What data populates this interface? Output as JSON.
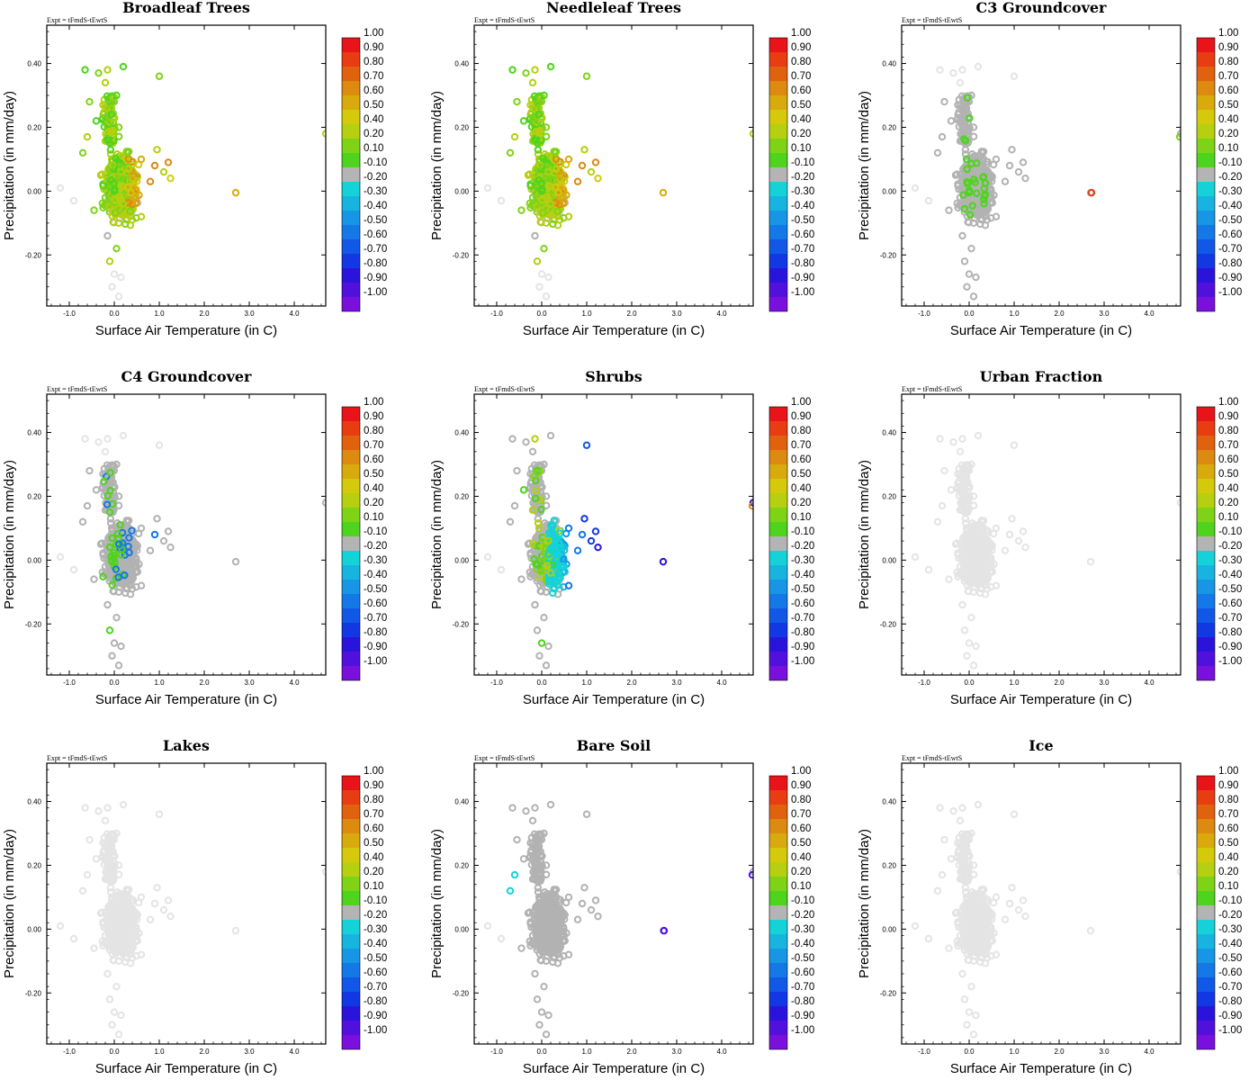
{
  "figure": {
    "experiment_label": "Expt = tFmdS-tEwtS",
    "colorbar_levels": [
      "1.00",
      "0.90",
      "0.80",
      "0.70",
      "0.60",
      "0.50",
      "0.40",
      "0.20",
      "0.10",
      "-0.10",
      "-0.20",
      "-0.30",
      "-0.40",
      "-0.50",
      "-0.60",
      "-0.70",
      "-0.80",
      "-0.90",
      "-1.00"
    ],
    "colorbar_colors": [
      "#e8141a",
      "#e83c12",
      "#e0620f",
      "#dc8a10",
      "#d8aa0d",
      "#d4c90a",
      "#b6cf10",
      "#7ed317",
      "#4ed41c",
      "#b4b4b4",
      "#14d2d8",
      "#18b4e0",
      "#1696e4",
      "#1478e6",
      "#1258e6",
      "#1238e4",
      "#2a14dc",
      "#5210dc",
      "#7a10dc"
    ],
    "colors": {
      "light_point": "#e4e4e4",
      "gray_point": "#b2b2b2",
      "frame": "#000000"
    }
  },
  "chart_data": [
    {
      "type": "scatter",
      "title": "Broadleaf Trees",
      "xlabel": "Surface Air Temperature (in C)",
      "ylabel": "Precipitation (in mm/day)",
      "xlim": [
        -1.5,
        4.7
      ],
      "ylim": [
        -0.36,
        0.52
      ],
      "xticks": [
        "-1.0",
        "0.0",
        "1.0",
        "2.0",
        "3.0",
        "4.0"
      ],
      "yticks": [
        "-0.20",
        "0.00",
        "0.20",
        "0.40"
      ],
      "palette": "green"
    },
    {
      "type": "scatter",
      "title": "Needleleaf Trees",
      "xlabel": "Surface Air Temperature (in C)",
      "ylabel": "Precipitation (in mm/day)",
      "xlim": [
        -1.5,
        4.7
      ],
      "ylim": [
        -0.36,
        0.52
      ],
      "xticks": [
        "-1.0",
        "0.0",
        "1.0",
        "2.0",
        "3.0",
        "4.0"
      ],
      "yticks": [
        "-0.20",
        "0.00",
        "0.20",
        "0.40"
      ],
      "palette": "green"
    },
    {
      "type": "scatter",
      "title": "C3 Groundcover",
      "xlabel": "Surface Air Temperature (in C)",
      "ylabel": "Precipitation (in mm/day)",
      "xlim": [
        -1.5,
        4.7
      ],
      "ylim": [
        -0.36,
        0.52
      ],
      "xticks": [
        "-1.0",
        "0.0",
        "1.0",
        "2.0",
        "3.0",
        "4.0"
      ],
      "yticks": [
        "-0.20",
        "0.00",
        "0.20",
        "0.40"
      ],
      "palette": "c3"
    },
    {
      "type": "scatter",
      "title": "C4 Groundcover",
      "xlabel": "Surface Air Temperature (in C)",
      "ylabel": "Precipitation (in mm/day)",
      "xlim": [
        -1.5,
        4.7
      ],
      "ylim": [
        -0.36,
        0.52
      ],
      "xticks": [
        "-1.0",
        "0.0",
        "1.0",
        "2.0",
        "3.0",
        "4.0"
      ],
      "yticks": [
        "-0.20",
        "0.00",
        "0.20",
        "0.40"
      ],
      "palette": "c4"
    },
    {
      "type": "scatter",
      "title": "Shrubs",
      "xlabel": "Surface Air Temperature (in C)",
      "ylabel": "Precipitation (in mm/day)",
      "xlim": [
        -1.5,
        4.7
      ],
      "ylim": [
        -0.36,
        0.52
      ],
      "xticks": [
        "-1.0",
        "0.0",
        "1.0",
        "2.0",
        "3.0",
        "4.0"
      ],
      "yticks": [
        "-0.20",
        "0.00",
        "0.20",
        "0.40"
      ],
      "palette": "shrubs"
    },
    {
      "type": "scatter",
      "title": "Urban Fraction",
      "xlabel": "Surface Air Temperature (in C)",
      "ylabel": "Precipitation (in mm/day)",
      "xlim": [
        -1.5,
        4.7
      ],
      "ylim": [
        -0.36,
        0.52
      ],
      "xticks": [
        "-1.0",
        "0.0",
        "1.0",
        "2.0",
        "3.0",
        "4.0"
      ],
      "yticks": [
        "-0.20",
        "0.00",
        "0.20",
        "0.40"
      ],
      "palette": "light"
    },
    {
      "type": "scatter",
      "title": "Lakes",
      "xlabel": "Surface Air Temperature (in C)",
      "ylabel": "Precipitation (in mm/day)",
      "xlim": [
        -1.5,
        4.7
      ],
      "ylim": [
        -0.36,
        0.52
      ],
      "xticks": [
        "-1.0",
        "0.0",
        "1.0",
        "2.0",
        "3.0",
        "4.0"
      ],
      "yticks": [
        "-0.20",
        "0.00",
        "0.20",
        "0.40"
      ],
      "palette": "light"
    },
    {
      "type": "scatter",
      "title": "Bare Soil",
      "xlabel": "Surface Air Temperature (in C)",
      "ylabel": "Precipitation (in mm/day)",
      "xlim": [
        -1.5,
        4.7
      ],
      "ylim": [
        -0.36,
        0.52
      ],
      "xticks": [
        "-1.0",
        "0.0",
        "1.0",
        "2.0",
        "3.0",
        "4.0"
      ],
      "yticks": [
        "-0.20",
        "0.00",
        "0.20",
        "0.40"
      ],
      "palette": "baresoil"
    },
    {
      "type": "scatter",
      "title": "Ice",
      "xlabel": "Surface Air Temperature (in C)",
      "ylabel": "Precipitation (in mm/day)",
      "xlim": [
        -1.5,
        4.7
      ],
      "ylim": [
        -0.36,
        0.52
      ],
      "xticks": [
        "-1.0",
        "0.0",
        "1.0",
        "2.0",
        "3.0",
        "4.0"
      ],
      "yticks": [
        "-0.20",
        "0.00",
        "0.20",
        "0.40"
      ],
      "palette": "light"
    }
  ],
  "shared_points": [
    [
      -0.65,
      0.38
    ],
    [
      -0.35,
      0.37
    ],
    [
      -0.15,
      0.38
    ],
    [
      0.2,
      0.39
    ],
    [
      1.0,
      0.36
    ],
    [
      -0.2,
      0.34
    ],
    [
      0.05,
      0.3
    ],
    [
      -0.55,
      0.28
    ],
    [
      -0.25,
      0.27
    ],
    [
      -0.4,
      0.22
    ],
    [
      0.1,
      0.2
    ],
    [
      -0.6,
      0.17
    ],
    [
      -0.1,
      0.15
    ],
    [
      0.3,
      0.12
    ],
    [
      0.6,
      0.1
    ],
    [
      0.9,
      0.08
    ],
    [
      1.1,
      0.06
    ],
    [
      1.25,
      0.04
    ],
    [
      0.4,
      0.05
    ],
    [
      0.8,
      0.03
    ],
    [
      -0.3,
      0.05
    ],
    [
      0.0,
      0.0
    ],
    [
      -0.2,
      -0.02
    ],
    [
      0.2,
      -0.04
    ],
    [
      0.5,
      -0.02
    ],
    [
      -0.45,
      -0.06
    ],
    [
      0.1,
      -0.1
    ],
    [
      -0.15,
      -0.14
    ],
    [
      0.05,
      -0.18
    ],
    [
      -0.1,
      -0.22
    ],
    [
      0.0,
      -0.26
    ],
    [
      0.15,
      -0.27
    ],
    [
      -0.05,
      -0.3
    ],
    [
      0.1,
      -0.33
    ],
    [
      2.7,
      -0.005
    ],
    [
      4.7,
      0.18
    ],
    [
      -1.2,
      0.01
    ],
    [
      -0.9,
      -0.03
    ],
    [
      0.95,
      0.13
    ],
    [
      1.2,
      0.09
    ],
    [
      -0.7,
      0.12
    ],
    [
      0.6,
      -0.08
    ]
  ]
}
